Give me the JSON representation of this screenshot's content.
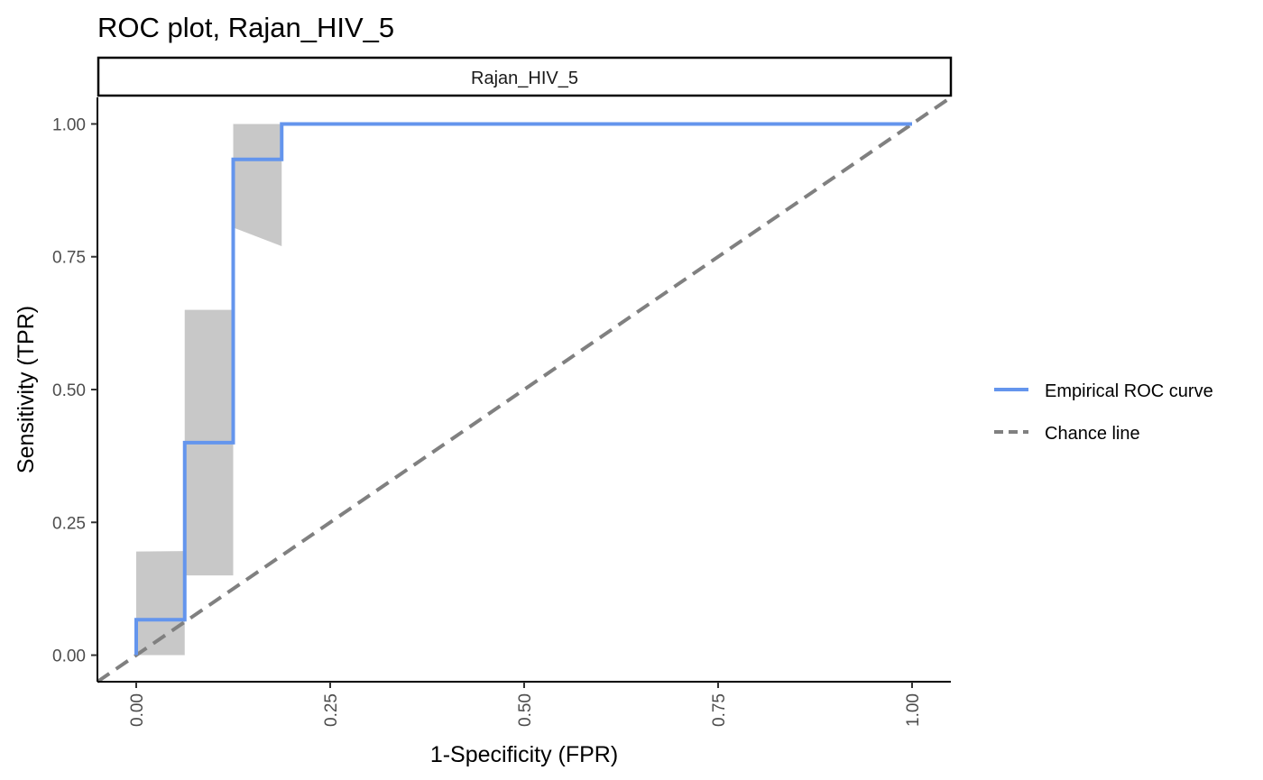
{
  "chart_data": {
    "type": "line",
    "title": "ROC plot, Rajan_HIV_5",
    "facet_label": "Rajan_HIV_5",
    "xlabel": "1-Specificity (FPR)",
    "ylabel": "Sensitivity (TPR)",
    "xlim": [
      -0.05,
      1.05
    ],
    "ylim": [
      -0.05,
      1.05
    ],
    "x_ticks": [
      0,
      0.25,
      0.5,
      0.75,
      1
    ],
    "x_tick_labels": [
      "0.00",
      "0.25",
      "0.50",
      "0.75",
      "1.00"
    ],
    "y_ticks": [
      0,
      0.25,
      0.5,
      0.75,
      1
    ],
    "y_tick_labels": [
      "0.00",
      "0.25",
      "0.50",
      "0.75",
      "1.00"
    ],
    "grid": false,
    "legend_position": "right",
    "series": [
      {
        "name": "Empirical ROC curve",
        "color": "#6495ED",
        "style": "solid",
        "x": [
          0,
          0,
          0.0625,
          0.0625,
          0.125,
          0.125,
          0.1875,
          0.1875,
          1
        ],
        "y": [
          0,
          0.0667,
          0.0667,
          0.4,
          0.4,
          0.9333,
          0.9333,
          1,
          1
        ]
      },
      {
        "name": "Chance line",
        "color": "#808080",
        "style": "dashed",
        "x": [
          -0.05,
          1.05
        ],
        "y": [
          -0.05,
          1.05
        ]
      }
    ],
    "confidence_bands": [
      {
        "x": [
          0,
          0.0625
        ],
        "lower": [
          0,
          0
        ],
        "upper": [
          0.195,
          0.196
        ]
      },
      {
        "x": [
          0.0625,
          0.125
        ],
        "lower": [
          0.15,
          0.15
        ],
        "upper": [
          0.65,
          0.65
        ]
      },
      {
        "x": [
          0.125,
          0.1875
        ],
        "lower": [
          0.805,
          0.77
        ],
        "upper": [
          1,
          1
        ]
      }
    ],
    "band_color": "#C8C8C8"
  }
}
